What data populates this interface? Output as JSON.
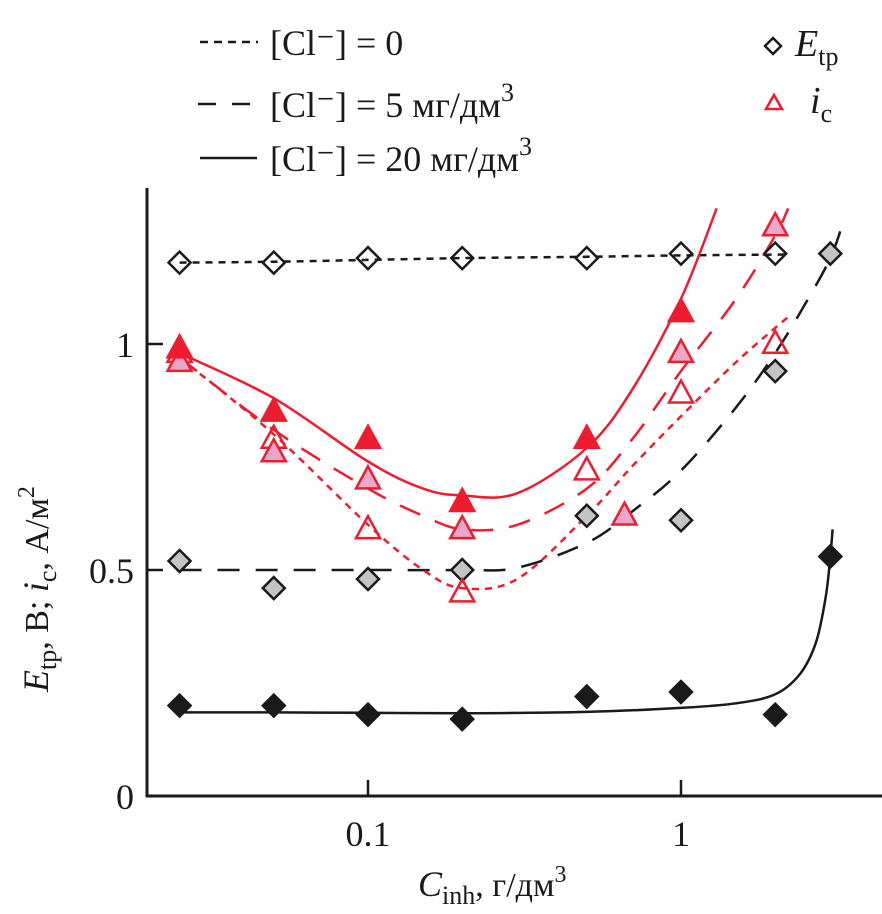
{
  "chart_data": {
    "type": "scatter",
    "title": "",
    "xlabel": "C_inh, г/дм³",
    "xlabel_parts": {
      "main": "C",
      "sub": "inh",
      "rest": ", г/дм",
      "sup": "3"
    },
    "ylabel": "E_tp, В; i_c, А/м²",
    "ylabel_parts": {
      "e": "E",
      "e_sub": "tp",
      "mid": ", В; ",
      "i": "i",
      "i_sub": "c",
      "rest": ", А/м",
      "sup": "2"
    },
    "xscale": "log",
    "xlim": [
      0.02,
      4
    ],
    "ylim": [
      0,
      1.35
    ],
    "x_ticks": [
      {
        "value": 0.1,
        "label": "0.1"
      },
      {
        "value": 1,
        "label": "1"
      }
    ],
    "y_ticks": [
      {
        "value": 0,
        "label": "0"
      },
      {
        "value": 0.5,
        "label": "0.5"
      },
      {
        "value": 1,
        "label": "1"
      }
    ],
    "grid": false,
    "legend_lines": {
      "placement": "top-left",
      "items": [
        {
          "style": "dotted",
          "text": "[Cl⁻] = 0"
        },
        {
          "style": "dashed",
          "text": "[Cl⁻] = 5 мг/дм",
          "sup": "3"
        },
        {
          "style": "solid",
          "text": "[Cl⁻] = 20 мг/дм",
          "sup": "3"
        }
      ]
    },
    "legend_markers": {
      "placement": "top-right",
      "items": [
        {
          "marker": "diamond",
          "main": "E",
          "sub": "tp",
          "color": "#1a1a1a"
        },
        {
          "marker": "triangle",
          "main": "i",
          "sub": "c",
          "color": "#ee1c2e"
        }
      ]
    },
    "colors": {
      "black": "#1a1a1a",
      "red": "#ee1c2e",
      "grey_fill": "#c4c4c4",
      "pink_fill": "#e8a9c9"
    },
    "series": [
      {
        "name": "E_tp, [Cl-] = 0",
        "marker": "diamond",
        "fill": "none",
        "stroke": "black",
        "line": "dotted",
        "x": [
          0.025,
          0.05,
          0.1,
          0.2,
          0.5,
          1,
          2
        ],
        "y": [
          1.18,
          1.18,
          1.19,
          1.19,
          1.19,
          1.2,
          1.2
        ],
        "fit": {
          "x": [
            0.025,
            0.05,
            0.1,
            0.2,
            0.5,
            1,
            2.2
          ],
          "y": [
            1.18,
            1.182,
            1.186,
            1.19,
            1.193,
            1.196,
            1.198
          ]
        }
      },
      {
        "name": "E_tp, [Cl-] = 5 мг/дм3",
        "marker": "diamond",
        "fill": "grey",
        "stroke": "black",
        "line": "dashed",
        "x": [
          0.025,
          0.05,
          0.1,
          0.2,
          0.5,
          1,
          2,
          3
        ],
        "y": [
          0.52,
          0.46,
          0.48,
          0.5,
          0.62,
          0.61,
          0.94,
          1.2
        ],
        "fit": {
          "x": [
            0.025,
            0.05,
            0.1,
            0.2,
            0.3,
            0.5,
            0.7,
            1,
            1.5,
            2,
            2.5,
            3,
            3.3
          ],
          "y": [
            0.5,
            0.5,
            0.5,
            0.5,
            0.505,
            0.56,
            0.63,
            0.72,
            0.86,
            0.98,
            1.09,
            1.19,
            1.27
          ]
        }
      },
      {
        "name": "E_tp, [Cl-] = 20 мг/дм3",
        "marker": "diamond",
        "fill": "black",
        "stroke": "black",
        "line": "solid",
        "x": [
          0.025,
          0.05,
          0.1,
          0.2,
          0.5,
          1,
          2,
          3
        ],
        "y": [
          0.2,
          0.2,
          0.18,
          0.17,
          0.22,
          0.23,
          0.18,
          0.53
        ],
        "fit": {
          "x": [
            0.025,
            0.05,
            0.1,
            0.2,
            0.5,
            1,
            1.5,
            2,
            2.4,
            2.7,
            2.9,
            3.0,
            3.05
          ],
          "y": [
            0.185,
            0.185,
            0.184,
            0.183,
            0.186,
            0.195,
            0.205,
            0.225,
            0.27,
            0.34,
            0.44,
            0.53,
            0.59
          ]
        }
      },
      {
        "name": "i_c, [Cl-] = 0",
        "marker": "triangle",
        "fill": "none",
        "stroke": "red",
        "line": "dotted",
        "x": [
          0.025,
          0.05,
          0.1,
          0.2,
          0.5,
          1,
          2
        ],
        "y": [
          0.98,
          0.79,
          0.59,
          0.45,
          0.72,
          0.89,
          1.0
        ],
        "fit": {
          "x": [
            0.025,
            0.05,
            0.1,
            0.15,
            0.2,
            0.3,
            0.5,
            0.7,
            1,
            1.5,
            2.2
          ],
          "y": [
            0.97,
            0.8,
            0.6,
            0.5,
            0.46,
            0.48,
            0.62,
            0.73,
            0.84,
            0.96,
            1.06
          ]
        }
      },
      {
        "name": "i_c, [Cl-] = 5 мг/дм3",
        "marker": "triangle",
        "fill": "pink",
        "stroke": "red",
        "line": "dashed",
        "x": [
          0.025,
          0.05,
          0.1,
          0.2,
          0.66,
          1,
          2
        ],
        "y": [
          0.96,
          0.76,
          0.7,
          0.59,
          0.62,
          0.98,
          1.26
        ],
        "fit": {
          "x": [
            0.025,
            0.05,
            0.1,
            0.15,
            0.2,
            0.3,
            0.5,
            0.7,
            1,
            1.5,
            2,
            2.2
          ],
          "y": [
            0.97,
            0.81,
            0.68,
            0.62,
            0.59,
            0.6,
            0.68,
            0.79,
            0.94,
            1.1,
            1.24,
            1.3
          ]
        }
      },
      {
        "name": "i_c, [Cl-] = 20 мг/дм3",
        "marker": "triangle",
        "fill": "red",
        "stroke": "red",
        "line": "solid",
        "x": [
          0.025,
          0.05,
          0.1,
          0.2,
          0.5,
          1
        ],
        "y": [
          0.99,
          0.85,
          0.79,
          0.65,
          0.79,
          1.07
        ],
        "fit": {
          "x": [
            0.025,
            0.05,
            0.1,
            0.15,
            0.2,
            0.3,
            0.5,
            0.7,
            1,
            1.3
          ],
          "y": [
            0.98,
            0.88,
            0.74,
            0.68,
            0.665,
            0.67,
            0.77,
            0.9,
            1.1,
            1.3
          ]
        }
      }
    ]
  }
}
